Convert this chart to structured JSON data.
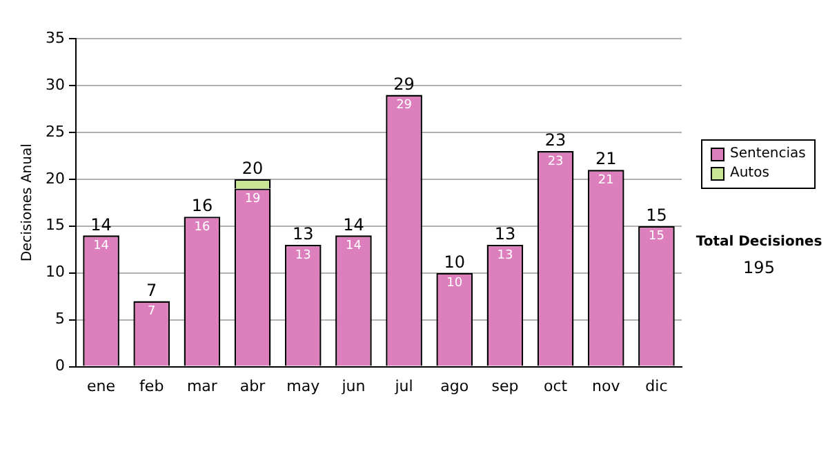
{
  "chart_data": {
    "type": "bar",
    "ylabel": "Decisiones Anual",
    "categories": [
      "ene",
      "feb",
      "mar",
      "abr",
      "may",
      "jun",
      "jul",
      "ago",
      "sep",
      "oct",
      "nov",
      "dic"
    ],
    "series": [
      {
        "name": "Sentencias",
        "color": "#dd7fbd",
        "values": [
          14,
          7,
          16,
          19,
          13,
          14,
          29,
          10,
          13,
          23,
          21,
          15
        ],
        "value_labels": [
          "14",
          "7",
          "16",
          "19",
          "13",
          "14",
          "29",
          "10",
          "13",
          "23",
          "21",
          "15"
        ]
      },
      {
        "name": "Autos",
        "color": "#c9e596",
        "values": [
          null,
          null,
          null,
          1,
          null,
          null,
          null,
          null,
          null,
          null,
          null,
          null
        ]
      }
    ],
    "stacked": true,
    "totals": [
      "14",
      "7",
      "16",
      "20",
      "13",
      "14",
      "29",
      "10",
      "13",
      "23",
      "21",
      "15"
    ],
    "ylim": [
      0,
      35
    ],
    "yticks": [
      0,
      5,
      10,
      15,
      20,
      25,
      30,
      35
    ],
    "grid": "y",
    "legend": "right",
    "annotations": [
      "Total Decisiones",
      "195"
    ]
  }
}
